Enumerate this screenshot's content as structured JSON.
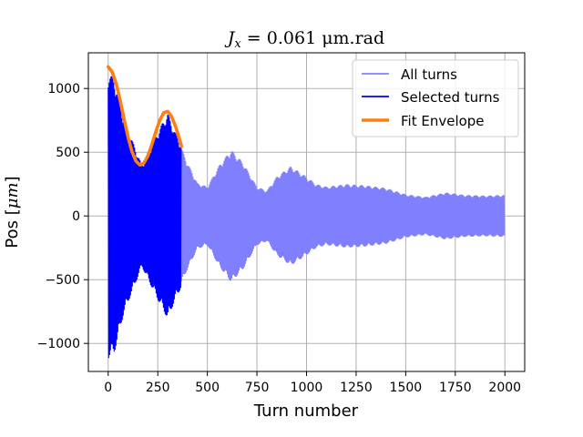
{
  "chart_data": {
    "type": "line",
    "title": "J_x = 0.061 μm.rad",
    "title_parts": {
      "variable": "J",
      "subscript": "x",
      "rest": " = 0.061 μm.rad"
    },
    "xlabel": "Turn number",
    "ylabel": "Pos [μm]",
    "ylabel_parts": {
      "prefix": "Pos [",
      "unit": "μm",
      "suffix": "]"
    },
    "xlim": [
      -100,
      2100
    ],
    "ylim": [
      -1220,
      1280
    ],
    "x_ticks": [
      0,
      250,
      500,
      750,
      1000,
      1250,
      1500,
      1750,
      2000
    ],
    "x_tick_labels": [
      "0",
      "250",
      "500",
      "750",
      "1000",
      "1250",
      "1500",
      "1750",
      "2000"
    ],
    "y_ticks": [
      -1000,
      -500,
      0,
      500,
      1000
    ],
    "y_tick_labels": [
      "−1000",
      "−500",
      "0",
      "500",
      "1000"
    ],
    "grid": true,
    "legend_position": "upper-right",
    "series": [
      {
        "name": "All turns",
        "color": "#8080ff",
        "style": "oscillation",
        "x_range": [
          0,
          2000
        ],
        "envelope": {
          "x": [
            0,
            30,
            80,
            170,
            250,
            300,
            340,
            400,
            450,
            500,
            560,
            620,
            680,
            750,
            800,
            850,
            920,
            980,
            1050,
            1100,
            1200,
            1300,
            1400,
            1500,
            1600,
            1700,
            1800,
            1900,
            2000
          ],
          "amplitude": [
            1120,
            1080,
            760,
            400,
            660,
            810,
            650,
            420,
            260,
            230,
            400,
            520,
            420,
            230,
            200,
            310,
            390,
            330,
            250,
            230,
            250,
            240,
            220,
            170,
            150,
            185,
            165,
            160,
            165
          ]
        }
      },
      {
        "name": "Selected turns",
        "color": "#0000ff",
        "style": "oscillation",
        "x_range": [
          0,
          370
        ],
        "envelope": {
          "x": [
            0,
            30,
            80,
            170,
            250,
            300,
            340,
            370
          ],
          "amplitude": [
            1120,
            1080,
            760,
            400,
            660,
            810,
            650,
            560
          ]
        }
      },
      {
        "name": "Fit Envelope",
        "color": "#ff7f0e",
        "style": "line",
        "x": [
          0,
          20,
          40,
          60,
          80,
          100,
          120,
          140,
          160,
          180,
          200,
          220,
          240,
          260,
          280,
          300,
          320,
          340,
          360,
          370
        ],
        "y": [
          1170,
          1130,
          1040,
          910,
          760,
          620,
          505,
          430,
          400,
          415,
          470,
          560,
          660,
          750,
          810,
          820,
          780,
          700,
          600,
          545
        ]
      }
    ]
  }
}
